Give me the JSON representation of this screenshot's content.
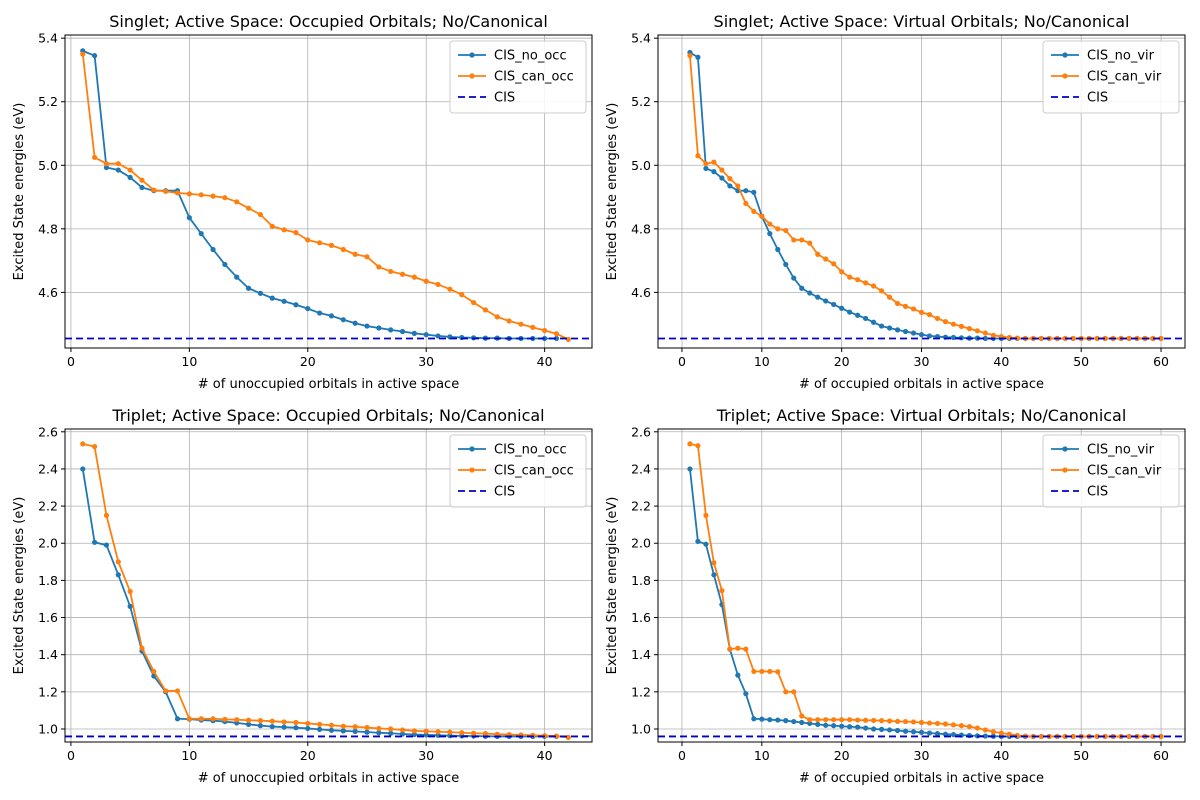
{
  "colors": {
    "no": "#1f77b4",
    "can": "#ff7f0e",
    "ref": "#0000cc",
    "grid": "#b0b0b0"
  },
  "chart_data": [
    {
      "type": "line",
      "title": "Singlet; Active Space: Occupied Orbitals; No/Canonical",
      "xlabel": "# of unoccupied orbitals in active space",
      "ylabel": "Excited State energies (eV)",
      "xlim": [
        -0.5,
        44
      ],
      "ylim": [
        4.425,
        5.41
      ],
      "xticks": [
        0,
        10,
        20,
        30,
        40
      ],
      "yticks": [
        4.6,
        4.8,
        5.0,
        5.2,
        5.4
      ],
      "ytick_labels": [
        "4.6",
        "4.8",
        "5.0",
        "5.2",
        "5.4"
      ],
      "legend_position": "top-right",
      "series": [
        {
          "name": "CIS_no_occ",
          "x_start": 1,
          "values": [
            5.36,
            5.345,
            4.993,
            4.985,
            4.962,
            4.93,
            4.92,
            4.92,
            4.92,
            4.835,
            4.785,
            4.735,
            4.688,
            4.648,
            4.613,
            4.597,
            4.582,
            4.572,
            4.561,
            4.549,
            4.535,
            4.526,
            4.514,
            4.503,
            4.494,
            4.488,
            4.482,
            4.477,
            4.471,
            4.467,
            4.463,
            4.46,
            4.458,
            4.457,
            4.456,
            4.456,
            4.455,
            4.455,
            4.455,
            4.455,
            4.455
          ]
        },
        {
          "name": "CIS_can_occ",
          "x_start": 1,
          "values": [
            5.35,
            5.025,
            5.005,
            5.005,
            4.985,
            4.953,
            4.922,
            4.918,
            4.913,
            4.91,
            4.907,
            4.903,
            4.898,
            4.885,
            4.865,
            4.845,
            4.808,
            4.797,
            4.788,
            4.765,
            4.756,
            4.748,
            4.735,
            4.72,
            4.712,
            4.68,
            4.666,
            4.657,
            4.648,
            4.635,
            4.625,
            4.61,
            4.593,
            4.568,
            4.545,
            4.523,
            4.51,
            4.5,
            4.49,
            4.48,
            4.47,
            4.452
          ]
        },
        {
          "name": "CIS",
          "reference_line": true,
          "y": 4.455
        }
      ]
    },
    {
      "type": "line",
      "title": "Singlet; Active Space: Virtual Orbitals; No/Canonical",
      "xlabel": "# of occupied orbitals in active space",
      "ylabel": "Excited State energies (eV)",
      "xlim": [
        -3,
        63
      ],
      "ylim": [
        4.425,
        5.41
      ],
      "xticks": [
        0,
        10,
        20,
        30,
        40,
        50,
        60
      ],
      "yticks": [
        4.6,
        4.8,
        5.0,
        5.2,
        5.4
      ],
      "ytick_labels": [
        "4.6",
        "4.8",
        "5.0",
        "5.2",
        "5.4"
      ],
      "legend_position": "top-right",
      "series": [
        {
          "name": "CIS_no_vir",
          "x_start": 1,
          "values": [
            5.355,
            5.34,
            4.99,
            4.98,
            4.96,
            4.935,
            4.92,
            4.92,
            4.915,
            4.84,
            4.785,
            4.735,
            4.688,
            4.645,
            4.613,
            4.598,
            4.585,
            4.573,
            4.562,
            4.55,
            4.538,
            4.528,
            4.518,
            4.506,
            4.494,
            4.488,
            4.482,
            4.477,
            4.472,
            4.467,
            4.463,
            4.461,
            4.459,
            4.458,
            4.457,
            4.456,
            4.456,
            4.455,
            4.455,
            4.455,
            4.455,
            4.455,
            4.455,
            4.455,
            4.455,
            4.455,
            4.455,
            4.455,
            4.455,
            4.455,
            4.455,
            4.455,
            4.455,
            4.455,
            4.455,
            4.455,
            4.455,
            4.455,
            4.455,
            4.455
          ]
        },
        {
          "name": "CIS_can_vir",
          "x_start": 1,
          "values": [
            5.345,
            5.03,
            5.005,
            5.01,
            4.985,
            4.958,
            4.935,
            4.88,
            4.855,
            4.84,
            4.815,
            4.8,
            4.795,
            4.765,
            4.765,
            4.755,
            4.72,
            4.705,
            4.69,
            4.665,
            4.648,
            4.64,
            4.63,
            4.62,
            4.605,
            4.585,
            4.565,
            4.556,
            4.548,
            4.537,
            4.53,
            4.518,
            4.508,
            4.5,
            4.493,
            4.486,
            4.479,
            4.472,
            4.465,
            4.461,
            4.458,
            4.456,
            4.455,
            4.455,
            4.455,
            4.455,
            4.455,
            4.455,
            4.455,
            4.455,
            4.455,
            4.455,
            4.455,
            4.455,
            4.455,
            4.455,
            4.455,
            4.455,
            4.455,
            4.455
          ]
        },
        {
          "name": "CIS",
          "reference_line": true,
          "y": 4.455
        }
      ]
    },
    {
      "type": "line",
      "title": "Triplet; Active Space: Occupied Orbitals; No/Canonical",
      "xlabel": "# of unoccupied orbitals in active space",
      "ylabel": "Excited State energies (eV)",
      "xlim": [
        -0.5,
        44
      ],
      "ylim": [
        0.93,
        2.615
      ],
      "xticks": [
        0,
        10,
        20,
        30,
        40
      ],
      "yticks": [
        1.0,
        1.2,
        1.4,
        1.6,
        1.8,
        2.0,
        2.2,
        2.4,
        2.6
      ],
      "ytick_labels": [
        "1.0",
        "1.2",
        "1.4",
        "1.6",
        "1.8",
        "2.0",
        "2.2",
        "2.4",
        "2.6"
      ],
      "legend_position": "top-right",
      "series": [
        {
          "name": "CIS_no_occ",
          "x_start": 1,
          "values": [
            2.4,
            2.005,
            1.99,
            1.83,
            1.66,
            1.42,
            1.285,
            1.2,
            1.055,
            1.053,
            1.048,
            1.045,
            1.04,
            1.033,
            1.025,
            1.018,
            1.013,
            1.01,
            1.007,
            1.003,
            0.998,
            0.993,
            0.99,
            0.987,
            0.983,
            0.98,
            0.977,
            0.973,
            0.97,
            0.968,
            0.966,
            0.964,
            0.963,
            0.962,
            0.961,
            0.96,
            0.96,
            0.96,
            0.96,
            0.96,
            0.96
          ]
        },
        {
          "name": "CIS_can_occ",
          "x_start": 1,
          "values": [
            2.535,
            2.52,
            2.15,
            1.9,
            1.74,
            1.435,
            1.31,
            1.205,
            1.205,
            1.055,
            1.055,
            1.055,
            1.052,
            1.05,
            1.047,
            1.045,
            1.042,
            1.038,
            1.035,
            1.03,
            1.025,
            1.02,
            1.015,
            1.012,
            1.008,
            1.003,
            1.0,
            0.995,
            0.99,
            0.988,
            0.985,
            0.983,
            0.98,
            0.977,
            0.975,
            0.972,
            0.97,
            0.968,
            0.966,
            0.964,
            0.962,
            0.955
          ]
        },
        {
          "name": "CIS",
          "reference_line": true,
          "y": 0.96
        }
      ]
    },
    {
      "type": "line",
      "title": "Triplet; Active Space: Virtual Orbitals; No/Canonical",
      "xlabel": "# of occupied orbitals in active space",
      "ylabel": "Excited State energies (eV)",
      "xlim": [
        -3,
        63
      ],
      "ylim": [
        0.93,
        2.615
      ],
      "xticks": [
        0,
        10,
        20,
        30,
        40,
        50,
        60
      ],
      "yticks": [
        1.0,
        1.2,
        1.4,
        1.6,
        1.8,
        2.0,
        2.2,
        2.4,
        2.6
      ],
      "ytick_labels": [
        "1.0",
        "1.2",
        "1.4",
        "1.6",
        "1.8",
        "2.0",
        "2.2",
        "2.4",
        "2.6"
      ],
      "legend_position": "top-right",
      "series": [
        {
          "name": "CIS_no_vir",
          "x_start": 1,
          "values": [
            2.4,
            2.01,
            1.995,
            1.83,
            1.67,
            1.43,
            1.29,
            1.19,
            1.055,
            1.053,
            1.05,
            1.048,
            1.045,
            1.04,
            1.035,
            1.03,
            1.025,
            1.02,
            1.018,
            1.015,
            1.012,
            1.01,
            1.005,
            1.0,
            0.998,
            0.995,
            0.992,
            0.988,
            0.985,
            0.982,
            0.978,
            0.975,
            0.972,
            0.97,
            0.967,
            0.965,
            0.963,
            0.962,
            0.961,
            0.96,
            0.96,
            0.96,
            0.96,
            0.96,
            0.96,
            0.96,
            0.96,
            0.96,
            0.96,
            0.96,
            0.96,
            0.96,
            0.96,
            0.96,
            0.96,
            0.96,
            0.96,
            0.96,
            0.96,
            0.96
          ]
        },
        {
          "name": "CIS_can_vir",
          "x_start": 1,
          "values": [
            2.535,
            2.525,
            2.15,
            1.895,
            1.745,
            1.43,
            1.435,
            1.43,
            1.31,
            1.31,
            1.31,
            1.308,
            1.2,
            1.2,
            1.07,
            1.05,
            1.05,
            1.05,
            1.05,
            1.05,
            1.05,
            1.048,
            1.047,
            1.046,
            1.045,
            1.043,
            1.041,
            1.04,
            1.038,
            1.035,
            1.032,
            1.03,
            1.027,
            1.022,
            1.018,
            1.013,
            1.005,
            0.995,
            0.985,
            0.978,
            0.972,
            0.965,
            0.962,
            0.96,
            0.96,
            0.96,
            0.96,
            0.96,
            0.96,
            0.96,
            0.96,
            0.96,
            0.96,
            0.96,
            0.96,
            0.96,
            0.96,
            0.96,
            0.96,
            0.96
          ]
        },
        {
          "name": "CIS",
          "reference_line": true,
          "y": 0.96
        }
      ]
    }
  ]
}
